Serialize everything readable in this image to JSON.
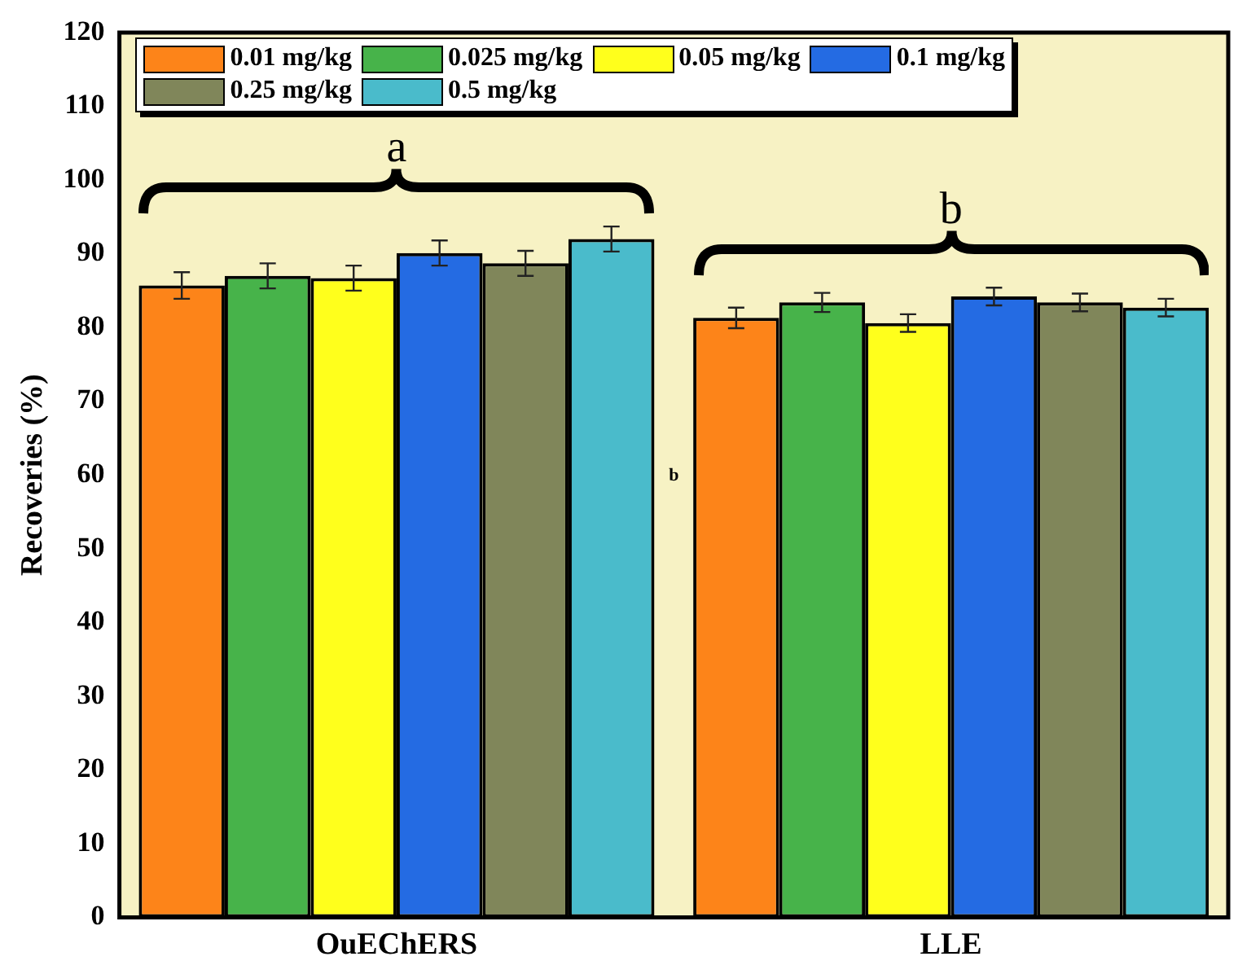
{
  "chart_data": {
    "type": "bar",
    "ylabel": "Recoveries (%)",
    "categories": [
      "OuEChERS",
      "LLE"
    ],
    "series": [
      {
        "name": "0.01 mg/kg",
        "color": "#fd8419",
        "values": [
          85.7,
          81.3
        ],
        "errors": [
          1.8,
          1.4
        ]
      },
      {
        "name": "0.025 mg/kg",
        "color": "#47b34a",
        "values": [
          87.0,
          83.4
        ],
        "errors": [
          1.7,
          1.3
        ]
      },
      {
        "name": "0.05 mg/kg",
        "color": "#ffff1c",
        "values": [
          86.7,
          80.6
        ],
        "errors": [
          1.7,
          1.2
        ]
      },
      {
        "name": "0.1 mg/kg",
        "color": "#246be3",
        "values": [
          90.1,
          84.2
        ],
        "errors": [
          1.7,
          1.2
        ]
      },
      {
        "name": "0.25 mg/kg",
        "color": "#80865a",
        "values": [
          88.7,
          83.4
        ],
        "errors": [
          1.7,
          1.2
        ]
      },
      {
        "name": "0.5 mg/kg",
        "color": "#4abbcb",
        "values": [
          92.0,
          82.7
        ],
        "errors": [
          1.7,
          1.2
        ]
      }
    ],
    "ylim": [
      0,
      120
    ],
    "yticks": [
      0,
      10,
      20,
      30,
      40,
      50,
      60,
      70,
      80,
      90,
      100,
      110,
      120
    ],
    "grid": false,
    "legend": "top",
    "annotations": [
      "a",
      "b",
      "b"
    ]
  }
}
